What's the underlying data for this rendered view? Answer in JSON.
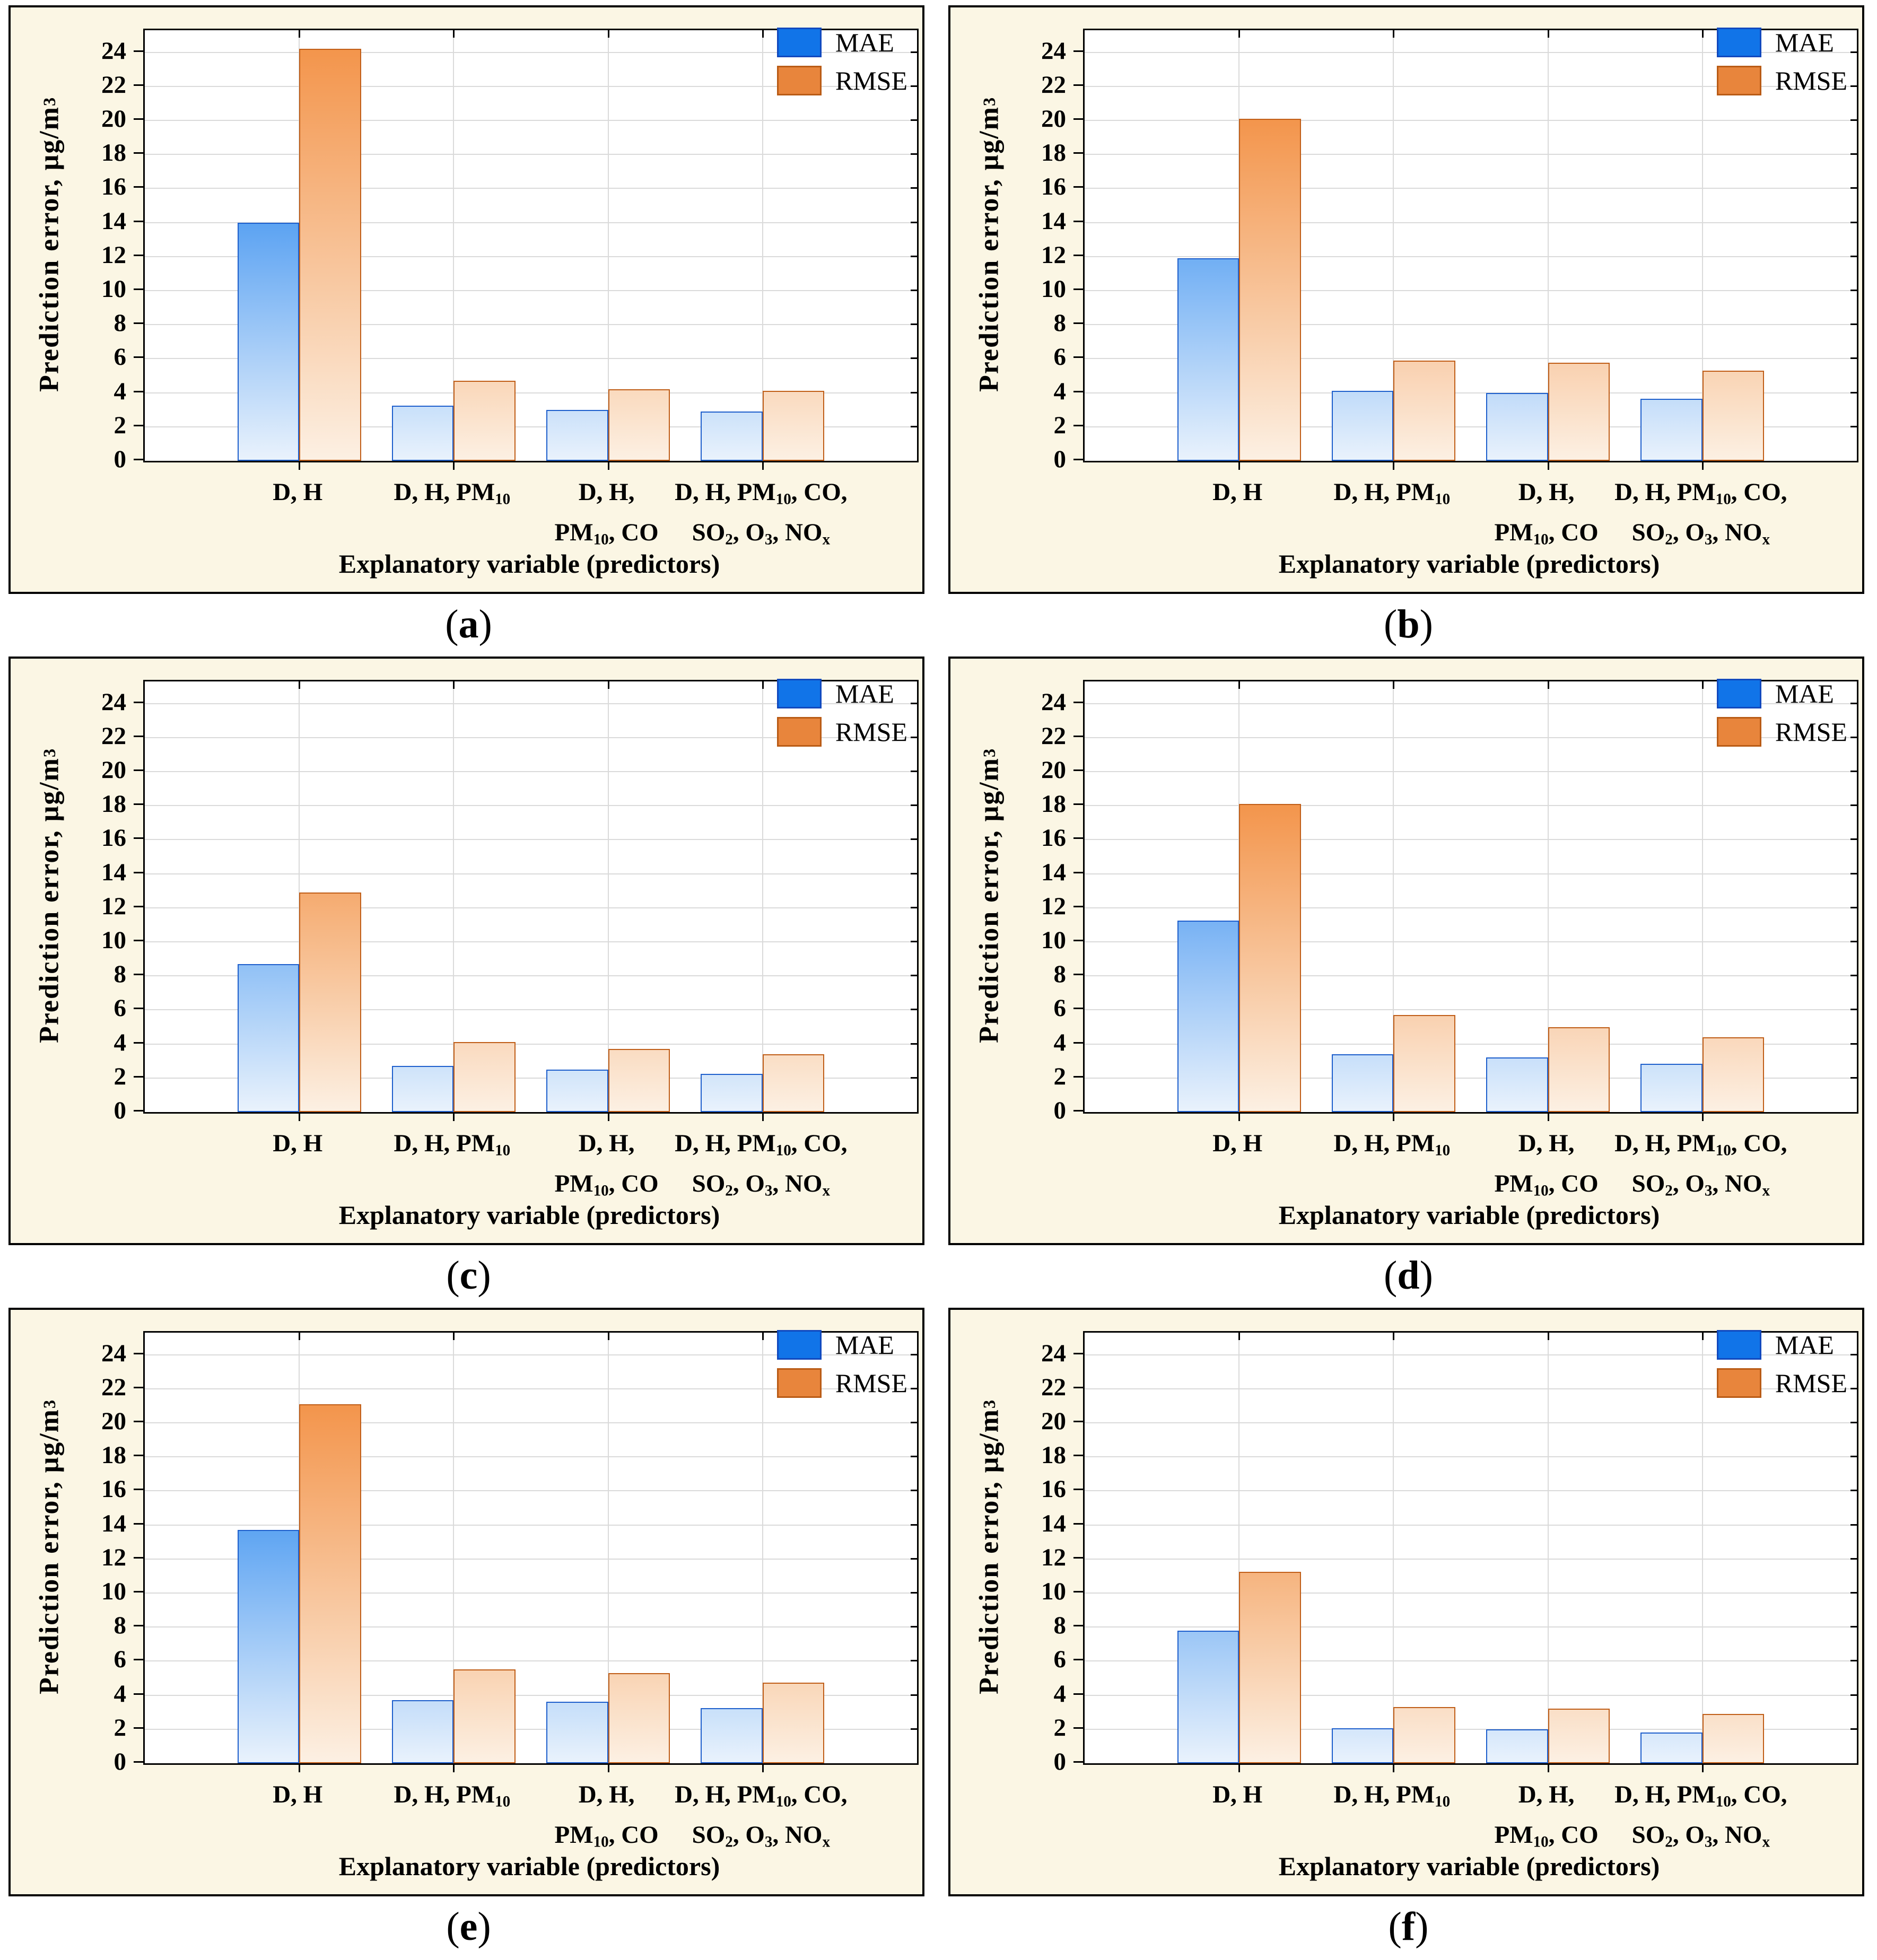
{
  "figure": {
    "ylabel": "Prediction error, μg/m^{3}",
    "xlabel": "Explanatory variable (predictors)",
    "y_ticks": [
      0,
      2,
      4,
      6,
      8,
      10,
      12,
      14,
      16,
      18,
      20,
      22,
      24
    ],
    "ylim": [
      0,
      25.3
    ],
    "grid": "horizontal every 2 units, vertical at category centers",
    "legend_position": "top-right inside plot",
    "legend": [
      {
        "label": "MAE",
        "fill": "#1174E8",
        "border": "#1149BE"
      },
      {
        "label": "RMSE",
        "fill": "#E8853C",
        "border": "#B95B15"
      }
    ],
    "categories_display": [
      "D, H",
      "D, H, PM_{10}",
      "D, H,\nPM_{10}, CO",
      "D, H, PM_{10}, CO,\nSO_{2}, O_{3}, NO_{x}"
    ]
  },
  "palette": {
    "panel_bg": "#FBF6E4",
    "gridline": "#DADADA",
    "mae": {
      "strong": "#3E92F0",
      "pale": "#E9F2FC",
      "border": "#1E5FCC"
    },
    "rmse": {
      "strong": "#F3954C",
      "pale": "#FCF0E3",
      "border": "#C05E18"
    }
  },
  "chart_data": [
    {
      "panel": "a",
      "type": "bar",
      "categories": [
        "D, H",
        "D, H, PM10",
        "D, H, PM10, CO",
        "D, H, PM10, CO, SO2, O3, NOx"
      ],
      "series": [
        {
          "name": "MAE",
          "values": [
            14.0,
            3.25,
            3.0,
            2.9
          ]
        },
        {
          "name": "RMSE",
          "values": [
            24.2,
            4.7,
            4.2,
            4.1
          ]
        }
      ]
    },
    {
      "panel": "b",
      "type": "bar",
      "categories": [
        "D, H",
        "D, H, PM10",
        "D, H, PM10, CO",
        "D, H, PM10, CO, SO2, O3, NOx"
      ],
      "series": [
        {
          "name": "MAE",
          "values": [
            11.9,
            4.1,
            4.0,
            3.65
          ]
        },
        {
          "name": "RMSE",
          "values": [
            20.1,
            5.9,
            5.75,
            5.3
          ]
        }
      ]
    },
    {
      "panel": "c",
      "type": "bar",
      "categories": [
        "D, H",
        "D, H, PM10",
        "D, H, PM10, CO",
        "D, H, PM10, CO, SO2, O3, NOx"
      ],
      "series": [
        {
          "name": "MAE",
          "values": [
            8.7,
            2.7,
            2.5,
            2.25
          ]
        },
        {
          "name": "RMSE",
          "values": [
            12.9,
            4.1,
            3.7,
            3.4
          ]
        }
      ]
    },
    {
      "panel": "d",
      "type": "bar",
      "categories": [
        "D, H",
        "D, H, PM10",
        "D, H, PM10, CO",
        "D, H, PM10, CO, SO2, O3, NOx"
      ],
      "series": [
        {
          "name": "MAE",
          "values": [
            11.25,
            3.4,
            3.2,
            2.85
          ]
        },
        {
          "name": "RMSE",
          "values": [
            18.1,
            5.7,
            5.0,
            4.4
          ]
        }
      ]
    },
    {
      "panel": "e",
      "type": "bar",
      "categories": [
        "D, H",
        "D, H, PM10",
        "D, H, PM10, CO",
        "D, H, PM10, CO, SO2, O3, NOx"
      ],
      "series": [
        {
          "name": "MAE",
          "values": [
            13.7,
            3.7,
            3.6,
            3.25
          ]
        },
        {
          "name": "RMSE",
          "values": [
            21.1,
            5.5,
            5.3,
            4.75
          ]
        }
      ]
    },
    {
      "panel": "f",
      "type": "bar",
      "categories": [
        "D, H",
        "D, H, PM10",
        "D, H, PM10, CO",
        "D, H, PM10, CO, SO2, O3, NOx"
      ],
      "series": [
        {
          "name": "MAE",
          "values": [
            7.8,
            2.05,
            2.0,
            1.8
          ]
        },
        {
          "name": "RMSE",
          "values": [
            11.25,
            3.3,
            3.2,
            2.9
          ]
        }
      ]
    }
  ]
}
